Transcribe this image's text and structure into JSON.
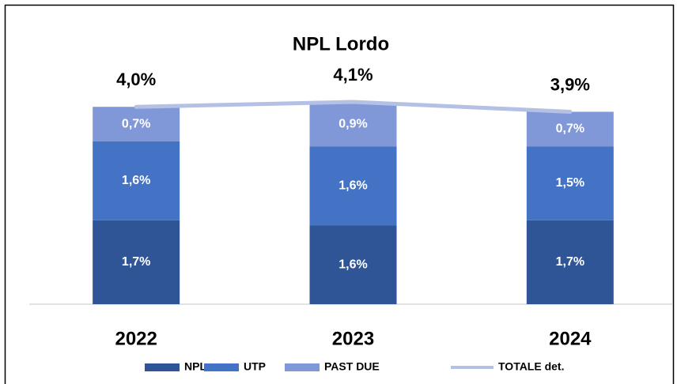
{
  "chart_data": {
    "type": "bar",
    "stacked": true,
    "title": "NPL Lordo",
    "categories": [
      "2022",
      "2023",
      "2024"
    ],
    "ylim": [
      0,
      4.5
    ],
    "series": [
      {
        "name": "NPL",
        "color": "#2f5597",
        "values": [
          1.7,
          1.6,
          1.7
        ],
        "value_labels": [
          "1,7%",
          "1,6%",
          "1,7%"
        ]
      },
      {
        "name": "UTP",
        "color": "#4472c4",
        "values": [
          1.6,
          1.6,
          1.5
        ],
        "value_labels": [
          "1,6%",
          "1,6%",
          "1,5%"
        ]
      },
      {
        "name": "PAST DUE",
        "color": "#8098d8",
        "values": [
          0.7,
          0.9,
          0.7
        ],
        "value_labels": [
          "0,7%",
          "0,9%",
          "0,7%"
        ]
      },
      {
        "name": "TOTALE det.",
        "type": "line",
        "color": "#b4c0e4",
        "values": [
          4.0,
          4.1,
          3.9
        ],
        "value_labels": [
          "4,0%",
          "4,1%",
          "3,9%"
        ]
      }
    ]
  }
}
